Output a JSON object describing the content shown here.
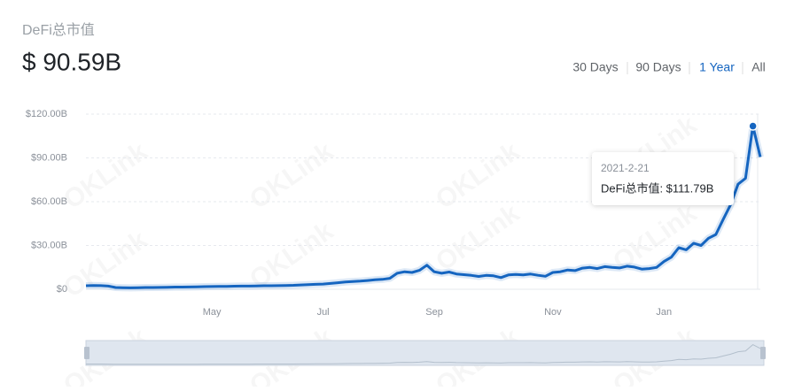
{
  "header": {
    "title": "DeFi总市值",
    "value": "$ 90.59B",
    "ranges": [
      "30 Days",
      "90 Days",
      "1 Year",
      "All"
    ]
  },
  "watermark": "OKLink",
  "chart_data": {
    "type": "line",
    "categories": [
      null,
      null,
      null,
      null,
      null,
      null,
      null,
      null,
      null,
      null,
      null,
      null,
      null,
      null,
      null,
      null,
      null,
      "May",
      null,
      null,
      null,
      null,
      null,
      null,
      null,
      null,
      null,
      null,
      null,
      null,
      null,
      null,
      "Jul",
      null,
      null,
      null,
      null,
      null,
      null,
      null,
      null,
      null,
      null,
      null,
      null,
      null,
      null,
      "Sep",
      null,
      null,
      null,
      null,
      null,
      null,
      null,
      null,
      null,
      null,
      null,
      null,
      null,
      null,
      null,
      "Nov",
      null,
      null,
      null,
      null,
      null,
      null,
      null,
      null,
      null,
      null,
      null,
      null,
      null,
      null,
      "Jan",
      null,
      null,
      null,
      null,
      null,
      null,
      null,
      null,
      null,
      null,
      null,
      null,
      null
    ],
    "series": [
      {
        "name": "DeFi总市值",
        "color": "#1565c0",
        "values": [
          2.4,
          2.6,
          2.5,
          2.2,
          1.2,
          1.1,
          1.0,
          1.1,
          1.2,
          1.2,
          1.3,
          1.4,
          1.5,
          1.5,
          1.6,
          1.7,
          1.8,
          1.9,
          2.0,
          2.0,
          2.1,
          2.2,
          2.2,
          2.3,
          2.4,
          2.4,
          2.5,
          2.6,
          2.7,
          3.0,
          3.2,
          3.4,
          3.6,
          4.0,
          4.5,
          5.0,
          5.3,
          5.6,
          6.0,
          6.5,
          6.8,
          7.5,
          11.0,
          12.0,
          11.5,
          13.0,
          16.5,
          12.0,
          11.0,
          11.8,
          10.5,
          10.0,
          9.5,
          8.8,
          9.5,
          9.2,
          8.0,
          9.8,
          10.2,
          9.8,
          10.4,
          9.6,
          8.9,
          11.5,
          12.0,
          13.2,
          12.8,
          14.5,
          15.0,
          14.2,
          15.5,
          15.0,
          14.6,
          15.8,
          15.2,
          13.8,
          14.2,
          15.0,
          19.0,
          22.0,
          28.5,
          27.0,
          31.5,
          30.0,
          35.0,
          37.5,
          48.0,
          58.0,
          72.0,
          76.0,
          111.79,
          90.59
        ]
      }
    ],
    "ylim": [
      0,
      120
    ],
    "yticks": [
      {
        "value": 0,
        "label": "$0"
      },
      {
        "value": 30,
        "label": "$30.00B"
      },
      {
        "value": 60,
        "label": "$60.00B"
      },
      {
        "value": 90,
        "label": "$90.00B"
      },
      {
        "value": 120,
        "label": "$120.00B"
      }
    ],
    "grid": true,
    "tooltip": {
      "date": "2021-2-21",
      "text": "DeFi总市值: $111.79B",
      "index": 90
    }
  }
}
